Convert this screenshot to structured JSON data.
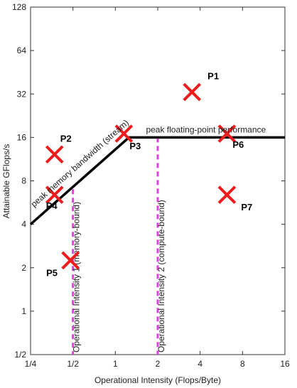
{
  "chart_data": {
    "type": "scatter",
    "title": "",
    "xlabel": "Operational Intensity (Flops/Byte)",
    "ylabel": "Attainable GFlops/s",
    "xscale": "log2",
    "yscale": "log2",
    "xlim": [
      0.25,
      16
    ],
    "ylim": [
      0.5,
      128
    ],
    "x_ticks": [
      0.25,
      0.5,
      1,
      2,
      4,
      8,
      16
    ],
    "x_tick_labels": [
      "1/4",
      "1/2",
      "1",
      "2",
      "4",
      "8",
      "16"
    ],
    "y_ticks": [
      0.5,
      1,
      2,
      4,
      8,
      16,
      32,
      64,
      128
    ],
    "y_tick_labels": [
      "1/2",
      "1",
      "2",
      "4",
      "8",
      "16",
      "32",
      "64",
      "128"
    ],
    "grid": false,
    "roofline": {
      "points": [
        [
          0.25,
          4
        ],
        [
          1.25,
          16
        ],
        [
          16,
          16
        ]
      ],
      "color": "#000000"
    },
    "points": [
      {
        "label": "P1",
        "x": 3.5,
        "y": 33
      },
      {
        "label": "P2",
        "x": 0.37,
        "y": 12.2
      },
      {
        "label": "P3",
        "x": 1.15,
        "y": 17
      },
      {
        "label": "P4",
        "x": 0.37,
        "y": 6.4
      },
      {
        "label": "P5",
        "x": 0.48,
        "y": 2.25
      },
      {
        "label": "P6",
        "x": 6.2,
        "y": 17
      },
      {
        "label": "P7",
        "x": 6.2,
        "y": 6.4
      }
    ],
    "marker_color": "#ee1c1c",
    "vlines": [
      {
        "x": 0.5,
        "label": "Operational Intensity 1 (memory-bound)",
        "color": "#e040e0"
      },
      {
        "x": 2.0,
        "label": "Operational Intensity 2 (compute-bound)",
        "color": "#e040e0"
      }
    ],
    "annotations": [
      {
        "text": "peak memory bandwidth (stream)"
      },
      {
        "text": "peak floating-point performance"
      }
    ]
  }
}
